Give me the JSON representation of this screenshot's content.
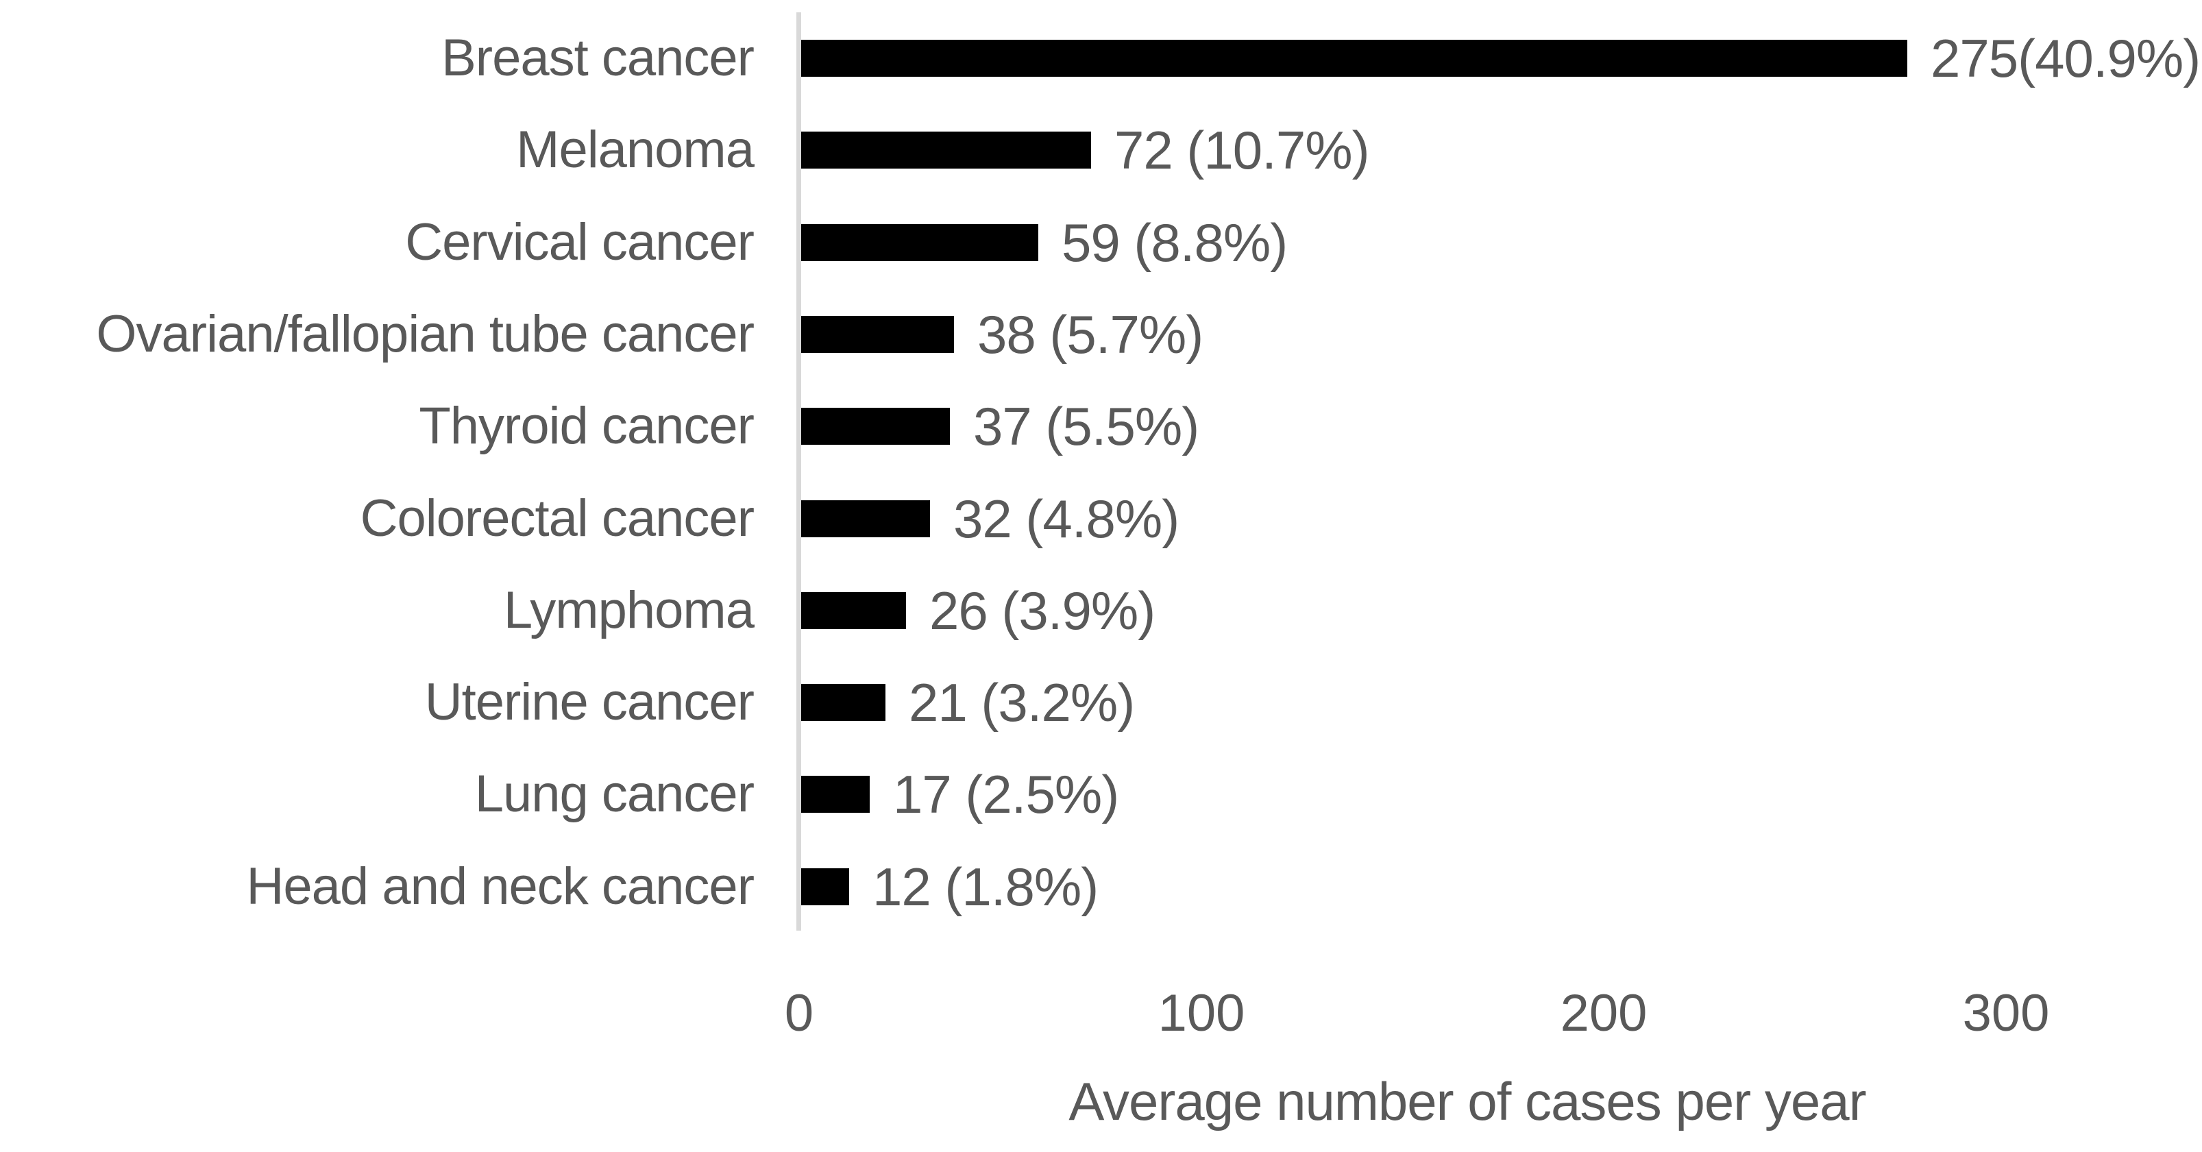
{
  "chart_data": {
    "type": "bar",
    "orientation": "horizontal",
    "title": "",
    "xlabel": "Average number of cases per year",
    "ylabel": "",
    "categories": [
      "Breast cancer",
      "Melanoma",
      "Cervical cancer",
      "Ovarian/fallopian tube cancer",
      "Thyroid cancer",
      "Colorectal cancer",
      "Lymphoma",
      "Uterine cancer",
      "Lung cancer",
      "Head and neck cancer"
    ],
    "values": [
      275,
      72,
      59,
      38,
      37,
      32,
      26,
      21,
      17,
      12
    ],
    "percentages": [
      40.9,
      10.7,
      8.8,
      5.7,
      5.5,
      4.8,
      3.9,
      3.2,
      2.5,
      1.8
    ],
    "value_labels": [
      "275(40.9%)",
      "72 (10.7%)",
      "59 (8.8%)",
      "38 (5.7%)",
      "37 (5.5%)",
      "32 (4.8%)",
      "26 (3.9%)",
      "21 (3.2%)",
      "17 (2.5%)",
      "12 (1.8%)"
    ],
    "x_ticks": [
      0,
      100,
      200,
      300
    ],
    "xlim": [
      0,
      348
    ],
    "grid": false,
    "legend": false,
    "colors": {
      "bar": "#000000",
      "text": "#595959",
      "axis_line": "#d9d9d9",
      "background": "#ffffff"
    }
  }
}
